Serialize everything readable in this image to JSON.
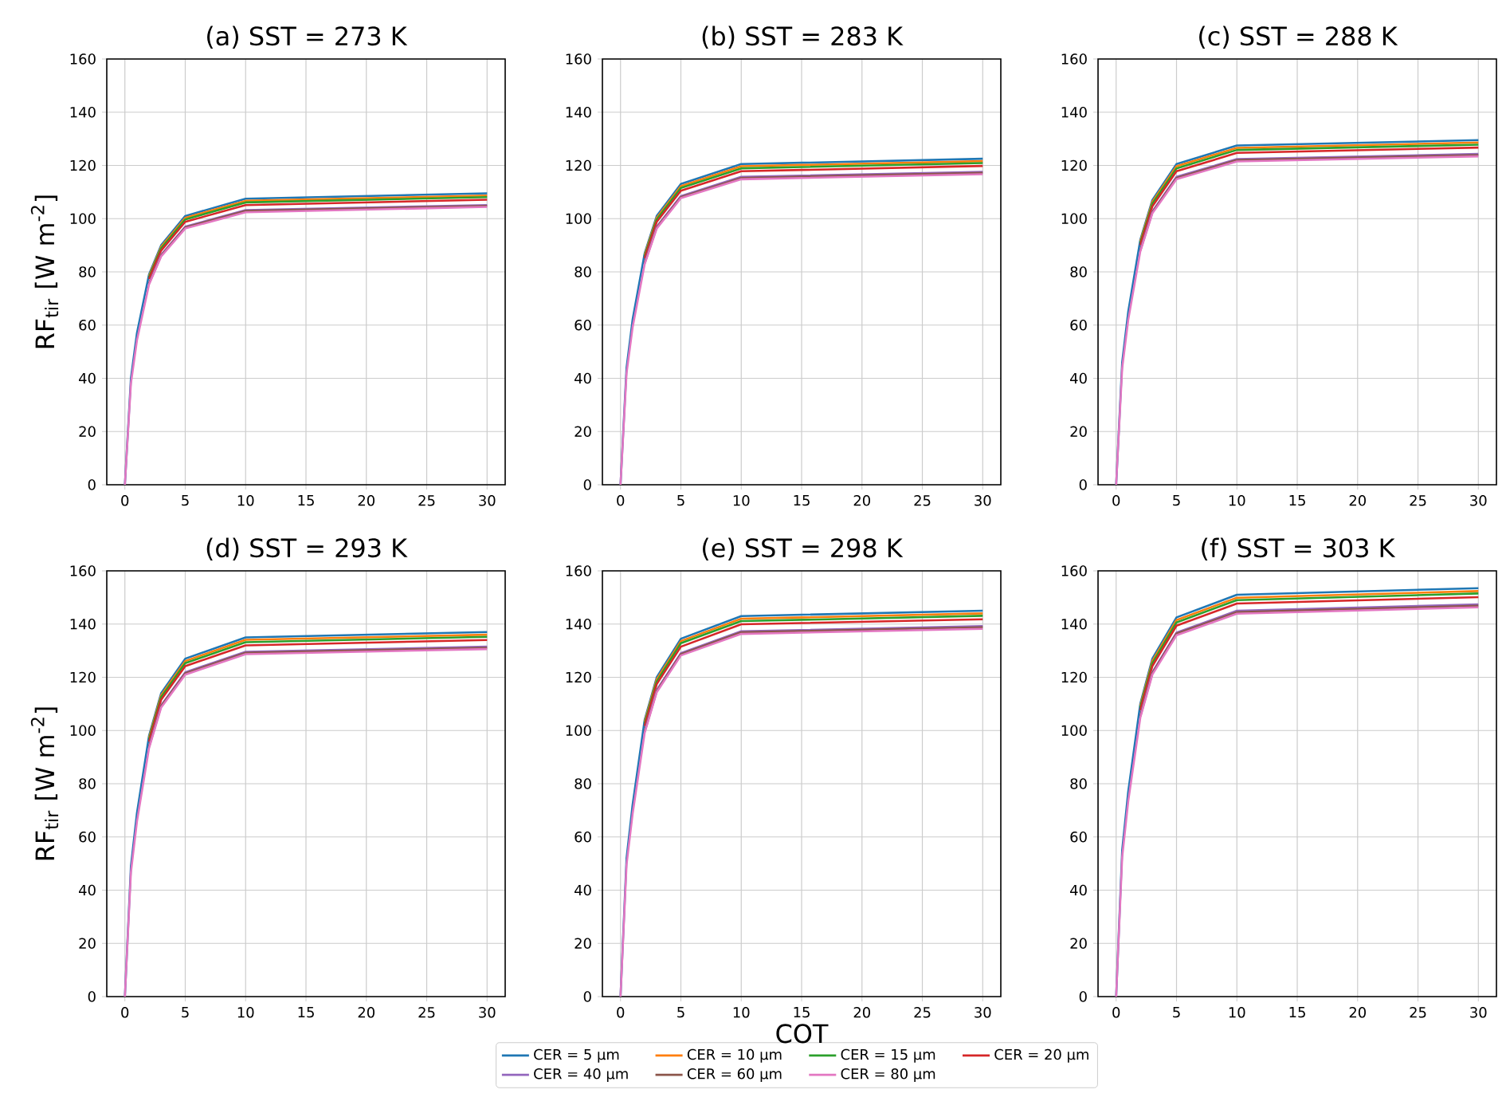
{
  "chart_data": [
    {
      "type": "line",
      "title": "(a) SST = 273 K",
      "ylabel": "RF$_{tir}$ [W m$^{-2}$]",
      "x": [
        0,
        0.5,
        1,
        2,
        3,
        5,
        10,
        30
      ],
      "xlim": [
        -1.5,
        31.5
      ],
      "ylim": [
        0,
        160
      ],
      "xticks": [
        0,
        5,
        10,
        15,
        20,
        25,
        30
      ],
      "yticks": [
        0,
        20,
        40,
        60,
        80,
        100,
        120,
        140,
        160
      ],
      "grid": true,
      "legend": "bottom",
      "series": [
        {
          "name": "CER = 5 μm",
          "color": "#1f77b4",
          "values": [
            0,
            40,
            57,
            79,
            90,
            101,
            107.5,
            109.5
          ]
        },
        {
          "name": "CER = 10 μm",
          "color": "#ff7f0e",
          "values": [
            null,
            null,
            null,
            78.4,
            89.4,
            100.3,
            106.7,
            108.7
          ]
        },
        {
          "name": "CER = 15 μm",
          "color": "#2ca02c",
          "values": [
            null,
            null,
            null,
            78,
            88.8,
            99.7,
            106.1,
            108.1
          ]
        },
        {
          "name": "CER = 20 μm",
          "color": "#d62728",
          "values": [
            null,
            null,
            null,
            77.3,
            88,
            98.8,
            105.1,
            107.1
          ]
        },
        {
          "name": "CER = 40 μm",
          "color": "#9467bd",
          "values": [
            null,
            null,
            null,
            75.8,
            86.4,
            97,
            103.2,
            105.1
          ]
        },
        {
          "name": "CER = 60 μm",
          "color": "#8c564b",
          "values": [
            null,
            null,
            null,
            75.6,
            86.1,
            96.7,
            102.9,
            104.8
          ]
        },
        {
          "name": "CER = 80 μm",
          "color": "#e377c2",
          "values": [
            0,
            38.1,
            54.3,
            75.3,
            85.8,
            96.3,
            102.4,
            104.4
          ]
        }
      ]
    },
    {
      "type": "line",
      "title": "(b) SST = 283 K",
      "x": [
        0,
        0.5,
        1,
        2,
        3,
        5,
        10,
        30
      ],
      "xlim": [
        -1.5,
        31.5
      ],
      "ylim": [
        0,
        160
      ],
      "xticks": [
        0,
        5,
        10,
        15,
        20,
        25,
        30
      ],
      "yticks": [
        0,
        20,
        40,
        60,
        80,
        100,
        120,
        140,
        160
      ],
      "grid": true,
      "series": [
        {
          "color": "#1f77b4",
          "values": [
            0,
            44,
            62,
            87,
            101,
            113,
            120.5,
            122.5
          ]
        },
        {
          "color": "#ff7f0e",
          "values": [
            null,
            null,
            null,
            86.4,
            100.3,
            112.2,
            119.7,
            121.6
          ]
        },
        {
          "color": "#2ca02c",
          "values": [
            null,
            null,
            null,
            85.9,
            99.7,
            111.5,
            118.9,
            120.9
          ]
        },
        {
          "color": "#d62728",
          "values": [
            null,
            null,
            null,
            85.1,
            98.8,
            110.5,
            117.8,
            119.8
          ]
        },
        {
          "color": "#9467bd",
          "values": [
            null,
            null,
            null,
            83.5,
            97,
            108.5,
            115.7,
            117.6
          ]
        },
        {
          "color": "#8c564b",
          "values": [
            null,
            null,
            null,
            83.3,
            96.7,
            108.1,
            115.3,
            117.2
          ]
        },
        {
          "color": "#e377c2",
          "values": [
            0,
            41.9,
            59.1,
            82.9,
            96.3,
            107.7,
            114.8,
            116.7
          ]
        }
      ]
    },
    {
      "type": "line",
      "title": "(c) SST = 288 K",
      "x": [
        0,
        0.5,
        1,
        2,
        3,
        5,
        10,
        30
      ],
      "xlim": [
        -1.5,
        31.5
      ],
      "ylim": [
        0,
        160
      ],
      "xticks": [
        0,
        5,
        10,
        15,
        20,
        25,
        30
      ],
      "yticks": [
        0,
        20,
        40,
        60,
        80,
        100,
        120,
        140,
        160
      ],
      "grid": true,
      "series": [
        {
          "color": "#1f77b4",
          "values": [
            0,
            46,
            65,
            92,
            107,
            120.5,
            127.5,
            129.5
          ]
        },
        {
          "color": "#ff7f0e",
          "values": [
            null,
            null,
            null,
            91.4,
            106.3,
            119.7,
            126.6,
            128.6
          ]
        },
        {
          "color": "#2ca02c",
          "values": [
            null,
            null,
            null,
            90.8,
            105.6,
            118.9,
            125.8,
            127.8
          ]
        },
        {
          "color": "#d62728",
          "values": [
            null,
            null,
            null,
            90,
            104.6,
            117.8,
            124.7,
            126.7
          ]
        },
        {
          "color": "#9467bd",
          "values": [
            null,
            null,
            null,
            88.3,
            102.7,
            115.7,
            122.4,
            124.3
          ]
        },
        {
          "color": "#8c564b",
          "values": [
            null,
            null,
            null,
            88,
            102.4,
            115.3,
            122,
            123.9
          ]
        },
        {
          "color": "#e377c2",
          "values": [
            0,
            43.8,
            61.9,
            87.7,
            102,
            114.8,
            121.5,
            123.4
          ]
        }
      ]
    },
    {
      "type": "line",
      "title": "(d) SST = 293 K",
      "ylabel": "RF$_{tir}$ [W m$^{-2}$]",
      "x": [
        0,
        0.5,
        1,
        2,
        3,
        5,
        10,
        30
      ],
      "xlim": [
        -1.5,
        31.5
      ],
      "ylim": [
        0,
        160
      ],
      "xticks": [
        0,
        5,
        10,
        15,
        20,
        25,
        30
      ],
      "yticks": [
        0,
        20,
        40,
        60,
        80,
        100,
        120,
        140,
        160
      ],
      "grid": true,
      "series": [
        {
          "color": "#1f77b4",
          "values": [
            0,
            49,
            69,
            98,
            114,
            127,
            135,
            137
          ]
        },
        {
          "color": "#ff7f0e",
          "values": [
            null,
            null,
            null,
            97.3,
            113.2,
            126.1,
            134.1,
            136
          ]
        },
        {
          "color": "#2ca02c",
          "values": [
            null,
            null,
            null,
            96.7,
            112.5,
            125.3,
            133.2,
            135.2
          ]
        },
        {
          "color": "#d62728",
          "values": [
            null,
            null,
            null,
            95.8,
            111.5,
            124.2,
            132,
            134
          ]
        },
        {
          "color": "#9467bd",
          "values": [
            null,
            null,
            null,
            94.1,
            109.4,
            121.9,
            129.6,
            131.5
          ]
        },
        {
          "color": "#8c564b",
          "values": [
            null,
            null,
            null,
            93.8,
            109.1,
            121.5,
            129.2,
            131.1
          ]
        },
        {
          "color": "#e377c2",
          "values": [
            0,
            46.7,
            65.8,
            93.4,
            108.6,
            121,
            128.7,
            130.6
          ]
        }
      ]
    },
    {
      "type": "line",
      "title": "(e) SST = 298 K",
      "xlabel": "COT",
      "x": [
        0,
        0.5,
        1,
        2,
        3,
        5,
        10,
        30
      ],
      "xlim": [
        -1.5,
        31.5
      ],
      "ylim": [
        0,
        160
      ],
      "xticks": [
        0,
        5,
        10,
        15,
        20,
        25,
        30
      ],
      "yticks": [
        0,
        20,
        40,
        60,
        80,
        100,
        120,
        140,
        160
      ],
      "grid": true,
      "series": [
        {
          "color": "#1f77b4",
          "values": [
            0,
            52,
            72,
            104,
            120,
            134.5,
            143,
            145
          ]
        },
        {
          "color": "#ff7f0e",
          "values": [
            null,
            null,
            null,
            103.3,
            119.2,
            133.6,
            142,
            144
          ]
        },
        {
          "color": "#2ca02c",
          "values": [
            null,
            null,
            null,
            102.6,
            118.4,
            132.8,
            141.1,
            143.1
          ]
        },
        {
          "color": "#d62728",
          "values": [
            null,
            null,
            null,
            101.7,
            117.4,
            131.5,
            139.9,
            141.8
          ]
        },
        {
          "color": "#9467bd",
          "values": [
            null,
            null,
            null,
            99.8,
            115.2,
            129.1,
            137.3,
            139.2
          ]
        },
        {
          "color": "#8c564b",
          "values": [
            null,
            null,
            null,
            99.5,
            114.8,
            128.7,
            136.9,
            138.8
          ]
        },
        {
          "color": "#e377c2",
          "values": [
            0,
            49.6,
            68.6,
            99.1,
            114.4,
            128.2,
            136.3,
            138.2
          ]
        }
      ]
    },
    {
      "type": "line",
      "title": "(f) SST = 303 K",
      "x": [
        0,
        0.5,
        1,
        2,
        3,
        5,
        10,
        30
      ],
      "xlim": [
        -1.5,
        31.5
      ],
      "ylim": [
        0,
        160
      ],
      "xticks": [
        0,
        5,
        10,
        15,
        20,
        25,
        30
      ],
      "yticks": [
        0,
        20,
        40,
        60,
        80,
        100,
        120,
        140,
        160
      ],
      "grid": true,
      "series": [
        {
          "color": "#1f77b4",
          "values": [
            0,
            55,
            77,
            110,
            127,
            142.5,
            151,
            153.5
          ]
        },
        {
          "color": "#ff7f0e",
          "values": [
            null,
            null,
            null,
            109.2,
            126.1,
            141.5,
            149.9,
            152.4
          ]
        },
        {
          "color": "#2ca02c",
          "values": [
            null,
            null,
            null,
            108.6,
            125.3,
            140.6,
            149,
            151.5
          ]
        },
        {
          "color": "#d62728",
          "values": [
            null,
            null,
            null,
            107.6,
            124.2,
            139.4,
            147.7,
            150.1
          ]
        },
        {
          "color": "#9467bd",
          "values": [
            null,
            null,
            null,
            105.6,
            121.9,
            136.8,
            145,
            147.4
          ]
        },
        {
          "color": "#8c564b",
          "values": [
            null,
            null,
            null,
            105.3,
            121.5,
            136.4,
            144.5,
            146.9
          ]
        },
        {
          "color": "#e377c2",
          "values": [
            0,
            52.4,
            73.4,
            104.8,
            121,
            135.8,
            143.9,
            146.3
          ]
        }
      ]
    }
  ]
}
